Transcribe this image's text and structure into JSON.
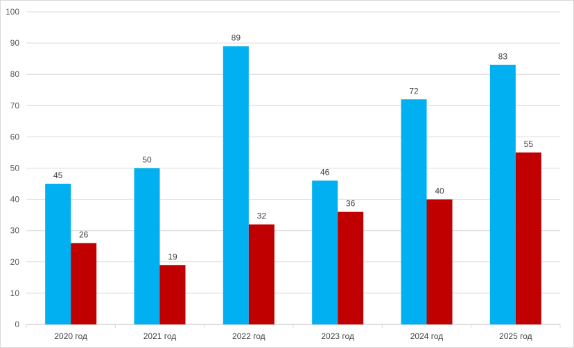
{
  "chart_data": {
    "type": "bar",
    "title": "",
    "xlabel": "",
    "ylabel": "",
    "ylim": [
      0,
      100
    ],
    "yticks": [
      0,
      10,
      20,
      30,
      40,
      50,
      60,
      70,
      80,
      90,
      100
    ],
    "grid": true,
    "legend": "none",
    "categories": [
      "2020 год",
      "2021 год",
      "2022 год",
      "2023 год",
      "2024 год",
      "2025 год"
    ],
    "series": [
      {
        "values": [
          45,
          50,
          89,
          46,
          72,
          83
        ],
        "color": "#00b0f0"
      },
      {
        "values": [
          26,
          19,
          32,
          36,
          40,
          55
        ],
        "color": "#c00000"
      }
    ]
  }
}
